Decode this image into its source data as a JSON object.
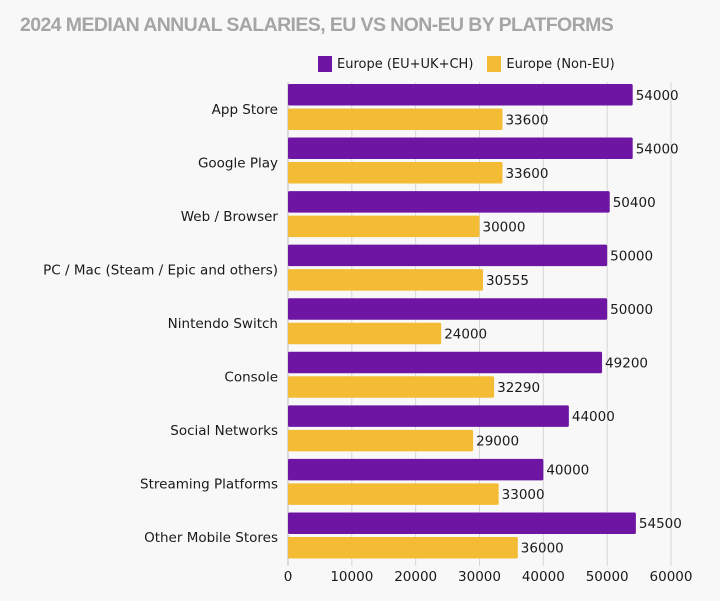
{
  "chart_data": {
    "type": "bar",
    "orientation": "horizontal",
    "title": "2024 MEDIAN ANNUAL SALARIES, EU VS NON-EU BY PLATFORMS",
    "xlabel": "",
    "ylabel": "",
    "xlim": [
      0,
      60000
    ],
    "xticks": [
      "0",
      "10000",
      "20000",
      "30000",
      "40000",
      "50000",
      "60000"
    ],
    "grid": true,
    "legend_position": "top-right",
    "categories": [
      "App Store",
      "Google Play",
      "Web / Browser",
      "PC / Mac (Steam / Epic and others)",
      "Nintendo Switch",
      "Console",
      "Social Networks",
      "Streaming Platforms",
      "Other Mobile Stores"
    ],
    "series": [
      {
        "name": "Europe (EU+UK+CH)",
        "color": "#6e16a3",
        "values": [
          54000,
          54000,
          50400,
          50000,
          50000,
          49200,
          44000,
          40000,
          54500
        ]
      },
      {
        "name": "Europe (Non-EU)",
        "color": "#f4bc35",
        "values": [
          33600,
          33600,
          30000,
          30555,
          24000,
          32290,
          29000,
          33000,
          36000
        ]
      }
    ]
  }
}
